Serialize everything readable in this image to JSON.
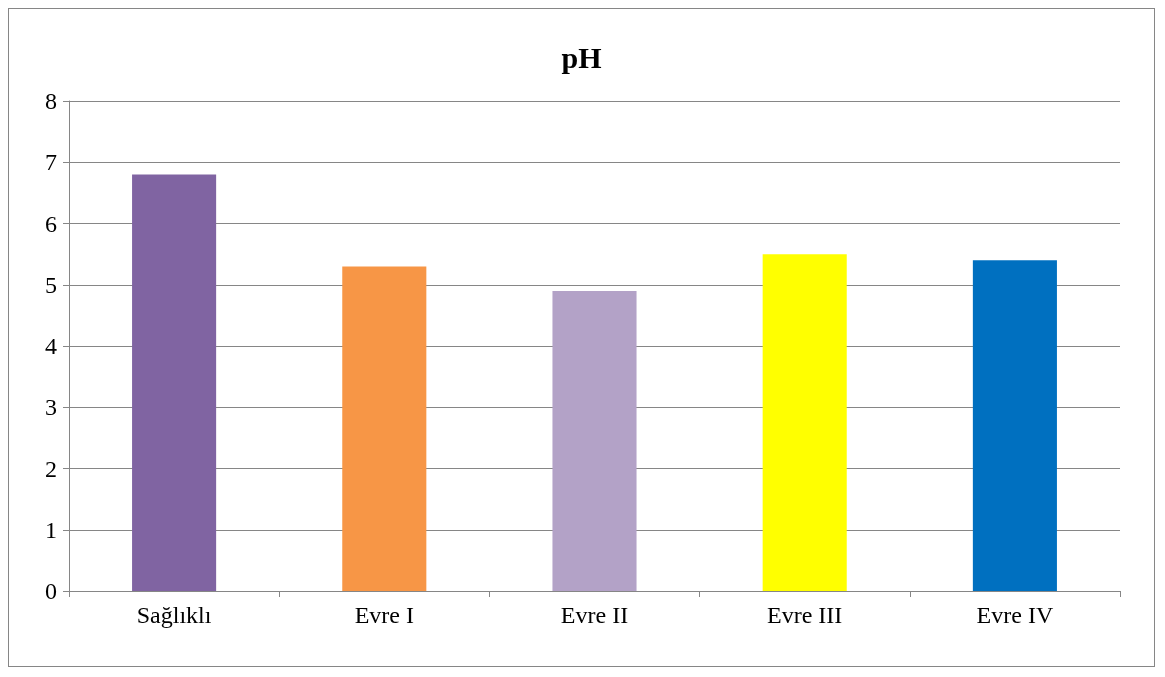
{
  "chart_data": {
    "type": "bar",
    "title": "pH",
    "categories": [
      "Sağlıklı",
      "Evre I",
      "Evre II",
      "Evre III",
      "Evre IV"
    ],
    "values": [
      6.8,
      5.3,
      4.9,
      5.5,
      5.4
    ],
    "colors": [
      "#8064a2",
      "#f79646",
      "#b3a2c7",
      "#ffff00",
      "#0070c0"
    ],
    "ylim": [
      0,
      8
    ],
    "yticks": [
      0,
      1,
      2,
      3,
      4,
      5,
      6,
      7,
      8
    ],
    "grid": "y"
  }
}
